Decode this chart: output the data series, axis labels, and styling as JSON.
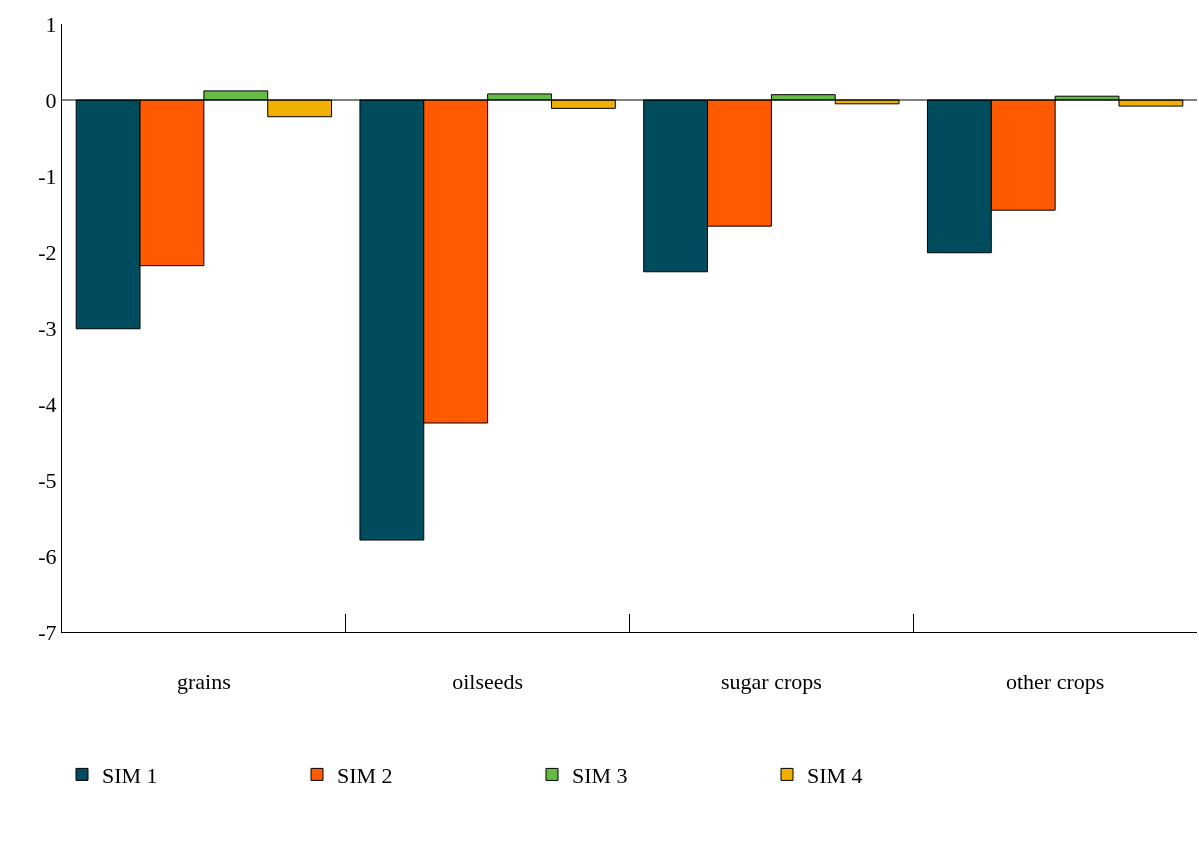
{
  "chart_data": {
    "type": "bar",
    "categories": [
      "grains",
      "oilseeds",
      "sugar crops",
      "other crops"
    ],
    "series": [
      {
        "name": "SIM 1",
        "color": "#004c5f",
        "values": [
          -3.01,
          -5.79,
          -2.26,
          -2.01
        ]
      },
      {
        "name": "SIM 2",
        "color": "#ff5a00",
        "values": [
          -2.18,
          -4.25,
          -1.66,
          -1.45
        ]
      },
      {
        "name": "SIM 3",
        "color": "#66bb44",
        "values": [
          0.12,
          0.08,
          0.07,
          0.05
        ]
      },
      {
        "name": "SIM 4",
        "color": "#f0b000",
        "values": [
          -0.22,
          -0.11,
          -0.05,
          -0.08
        ]
      }
    ],
    "ylim": [
      -7,
      1
    ],
    "yticks": [
      -7,
      -6,
      -5,
      -4,
      -3,
      -2,
      -1,
      0,
      1
    ],
    "ref_lines": [
      {
        "axis": "y",
        "value": 0,
        "color": "#000000"
      }
    ],
    "legend": "bottom left"
  }
}
